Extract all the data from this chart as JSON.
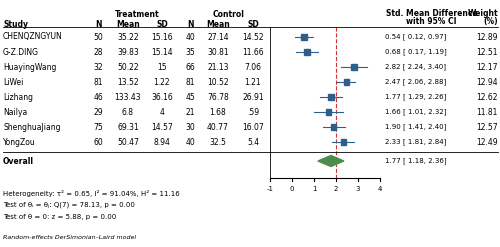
{
  "studies": [
    "CHENQZNGYUN",
    "G-Z.DING",
    "HuayingWang",
    "LiWei",
    "Lizhang",
    "Nailya",
    "ShenghuaJiang",
    "YongZou"
  ],
  "treatment_n": [
    50,
    28,
    32,
    81,
    46,
    29,
    75,
    60
  ],
  "treatment_mean": [
    "35.22",
    "39.83",
    "50.22",
    "13.52",
    "133.43",
    "6.8",
    "69.31",
    "50.47"
  ],
  "treatment_sd": [
    "15.16",
    "15.14",
    "15",
    "1.22",
    "36.16",
    "4",
    "14.57",
    "8.94"
  ],
  "control_n": [
    40,
    35,
    66,
    81,
    45,
    21,
    30,
    40
  ],
  "control_mean": [
    "27.14",
    "30.81",
    "21.13",
    "10.52",
    "76.78",
    "1.68",
    "40.77",
    "32.5"
  ],
  "control_sd": [
    "14.52",
    "11.66",
    "7.06",
    "1.21",
    "26.91",
    ".59",
    "16.07",
    "5.4"
  ],
  "smd": [
    0.54,
    0.68,
    2.82,
    2.47,
    1.77,
    1.66,
    1.9,
    2.33
  ],
  "ci_low": [
    0.12,
    0.17,
    2.24,
    2.06,
    1.29,
    1.01,
    1.41,
    1.81
  ],
  "ci_high": [
    0.97,
    1.19,
    3.4,
    2.88,
    2.26,
    2.32,
    2.4,
    2.84
  ],
  "weight": [
    12.89,
    12.51,
    12.17,
    12.94,
    12.62,
    11.81,
    12.57,
    12.49
  ],
  "smd_labels": [
    "0.54 [ 0.12, 0.97]",
    "0.68 [ 0.17, 1.19]",
    "2.82 [ 2.24, 3.40]",
    "2.47 [ 2.06, 2.88]",
    "1.77 [ 1.29, 2.26]",
    "1.66 [ 1.01, 2.32]",
    "1.90 [ 1.41, 2.40]",
    "2.33 [ 1.81, 2.84]"
  ],
  "weight_labels": [
    "12.89",
    "12.51",
    "12.17",
    "12.94",
    "12.62",
    "11.81",
    "12.57",
    "12.49"
  ],
  "overall_smd": 1.77,
  "overall_ci_low": 1.18,
  "overall_ci_high": 2.36,
  "overall_label": "1.77 [ 1.18, 2.36]",
  "xmin": -1,
  "xmax": 4,
  "xticks": [
    -1,
    0,
    1,
    2,
    3,
    4
  ],
  "vline_x": 2.0,
  "heterogeneity_text": "Heterogeneity: τ² = 0.65, I² = 91.04%, H² = 11.16",
  "test_theta_text": "Test of θᵢ = θⱼ: Q(7) = 78.13, p = 0.00",
  "test_zero_text": "Test of θ = 0: z = 5.88, p = 0.00",
  "footer_text": "Random-effects DerSimonian–Laird model",
  "square_color": "#2e5f8a",
  "diamond_color": "#4d8c4d",
  "ci_line_color": "#2e5f8a",
  "vline_color": "#cc3333"
}
